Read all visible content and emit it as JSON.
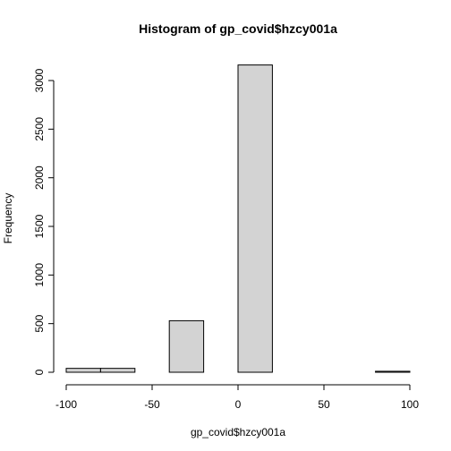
{
  "chart_data": {
    "type": "bar",
    "title": "Histogram of gp_covid$hzcy001a",
    "xlabel": "gp_covid$hzcy001a",
    "ylabel": "Frequency",
    "xlim": [
      -100,
      100
    ],
    "ylim": [
      0,
      3150
    ],
    "x_ticks": [
      -100,
      -50,
      0,
      50,
      100
    ],
    "y_ticks": [
      0,
      500,
      1000,
      1500,
      2000,
      2500,
      3000
    ],
    "bins": [
      {
        "x0": -100,
        "x1": -80,
        "count": 40
      },
      {
        "x0": -80,
        "x1": -60,
        "count": 40
      },
      {
        "x0": -60,
        "x1": -40,
        "count": 0
      },
      {
        "x0": -40,
        "x1": -20,
        "count": 530
      },
      {
        "x0": -20,
        "x1": 0,
        "count": 0
      },
      {
        "x0": 0,
        "x1": 20,
        "count": 3160
      },
      {
        "x0": 20,
        "x1": 40,
        "count": 0
      },
      {
        "x0": 40,
        "x1": 60,
        "count": 0
      },
      {
        "x0": 60,
        "x1": 80,
        "count": 0
      },
      {
        "x0": 80,
        "x1": 100,
        "count": 10
      }
    ],
    "bar_color": "#d3d3d3",
    "grid": false
  }
}
